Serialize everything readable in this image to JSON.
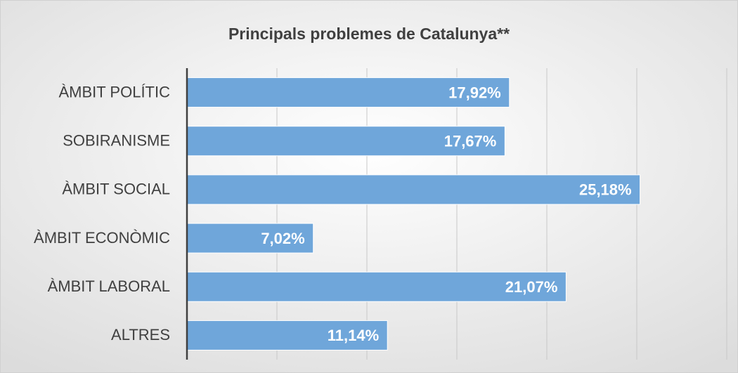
{
  "chart_data": {
    "type": "bar",
    "orientation": "horizontal",
    "title": "Principals problemes de Catalunya**",
    "categories": [
      "ÀMBIT POLÍTIC",
      "SOBIRANISME",
      "ÀMBIT SOCIAL",
      "ÀMBIT ECONÒMIC",
      "ÀMBIT LABORAL",
      "ALTRES"
    ],
    "values": [
      17.92,
      17.67,
      25.18,
      7.02,
      21.07,
      11.14
    ],
    "value_labels": [
      "17,92%",
      "17,67%",
      "25,18%",
      "7,02%",
      "21,07%",
      "11,14%"
    ],
    "color": "#6fa6da",
    "xlim": [
      0,
      30
    ],
    "xticks": [
      0,
      5,
      10,
      15,
      20,
      25,
      30
    ],
    "grid": true
  }
}
